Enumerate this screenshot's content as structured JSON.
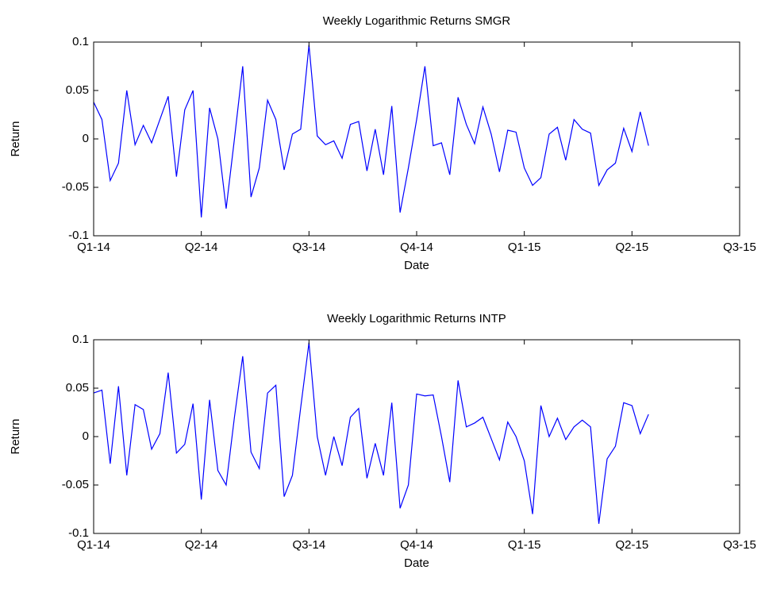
{
  "chart_data": [
    {
      "type": "line",
      "title": "Weekly Logarithmic Returns SMGR",
      "xlabel": "Date",
      "ylabel": "Return",
      "xlim": [
        0,
        78
      ],
      "xticks": [
        {
          "value": 0,
          "label": "Q1-14"
        },
        {
          "value": 13,
          "label": "Q2-14"
        },
        {
          "value": 26,
          "label": "Q3-14"
        },
        {
          "value": 39,
          "label": "Q4-14"
        },
        {
          "value": 52,
          "label": "Q1-15"
        },
        {
          "value": 65,
          "label": "Q2-15"
        },
        {
          "value": 78,
          "label": "Q3-15"
        }
      ],
      "ylim": [
        -0.1,
        0.1
      ],
      "yticks": [
        -0.1,
        -0.05,
        0,
        0.05,
        0.1
      ],
      "x": [
        0,
        1,
        2,
        3,
        4,
        5,
        6,
        7,
        8,
        9,
        10,
        11,
        12,
        13,
        14,
        15,
        16,
        17,
        18,
        19,
        20,
        21,
        22,
        23,
        24,
        25,
        26,
        27,
        28,
        29,
        30,
        31,
        32,
        33,
        34,
        35,
        36,
        37,
        38,
        39,
        40,
        41,
        42,
        43,
        44,
        45,
        46,
        47,
        48,
        49,
        50,
        51,
        52,
        53,
        54,
        55,
        56,
        57,
        58,
        59,
        60,
        61,
        62,
        63,
        64,
        65,
        66,
        67
      ],
      "series": [
        {
          "color": "#0000ff",
          "values": [
            0.038,
            0.02,
            -0.043,
            -0.025,
            0.05,
            -0.006,
            0.014,
            -0.004,
            0.02,
            0.044,
            -0.039,
            0.03,
            0.05,
            -0.081,
            0.032,
            0.0,
            -0.072,
            0.0,
            0.075,
            -0.06,
            -0.03,
            0.04,
            0.02,
            -0.032,
            0.005,
            0.01,
            0.097,
            0.003,
            -0.006,
            -0.002,
            -0.02,
            0.015,
            0.018,
            -0.033,
            0.01,
            -0.037,
            0.034,
            -0.076,
            -0.03,
            0.02,
            0.075,
            -0.007,
            -0.004,
            -0.037,
            0.043,
            0.015,
            -0.005,
            0.033,
            0.005,
            -0.034,
            0.009,
            0.007,
            -0.03,
            -0.048,
            -0.04,
            0.005,
            0.012,
            -0.022,
            0.02,
            0.01,
            0.006,
            -0.048,
            -0.032,
            -0.025,
            0.011,
            -0.013,
            0.028,
            -0.007
          ]
        }
      ]
    },
    {
      "type": "line",
      "title": "Weekly Logarithmic Returns INTP",
      "xlabel": "Date",
      "ylabel": "Return",
      "xlim": [
        0,
        78
      ],
      "xticks": [
        {
          "value": 0,
          "label": "Q1-14"
        },
        {
          "value": 13,
          "label": "Q2-14"
        },
        {
          "value": 26,
          "label": "Q3-14"
        },
        {
          "value": 39,
          "label": "Q4-14"
        },
        {
          "value": 52,
          "label": "Q1-15"
        },
        {
          "value": 65,
          "label": "Q2-15"
        },
        {
          "value": 78,
          "label": "Q3-15"
        }
      ],
      "ylim": [
        -0.1,
        0.1
      ],
      "yticks": [
        -0.1,
        -0.05,
        0,
        0.05,
        0.1
      ],
      "x": [
        0,
        1,
        2,
        3,
        4,
        5,
        6,
        7,
        8,
        9,
        10,
        11,
        12,
        13,
        14,
        15,
        16,
        17,
        18,
        19,
        20,
        21,
        22,
        23,
        24,
        25,
        26,
        27,
        28,
        29,
        30,
        31,
        32,
        33,
        34,
        35,
        36,
        37,
        38,
        39,
        40,
        41,
        42,
        43,
        44,
        45,
        46,
        47,
        48,
        49,
        50,
        51,
        52,
        53,
        54,
        55,
        56,
        57,
        58,
        59,
        60,
        61,
        62,
        63,
        64,
        65,
        66,
        67
      ],
      "series": [
        {
          "color": "#0000ff",
          "values": [
            0.045,
            0.048,
            -0.028,
            0.052,
            -0.04,
            0.033,
            0.028,
            -0.013,
            0.003,
            0.066,
            -0.017,
            -0.008,
            0.034,
            -0.065,
            0.038,
            -0.035,
            -0.05,
            0.02,
            0.083,
            -0.016,
            -0.033,
            0.045,
            0.053,
            -0.062,
            -0.04,
            0.03,
            0.097,
            0.0,
            -0.04,
            0.0,
            -0.03,
            0.02,
            0.029,
            -0.043,
            -0.007,
            -0.04,
            0.035,
            -0.074,
            -0.05,
            0.044,
            0.042,
            0.043,
            0.0,
            -0.047,
            0.058,
            0.01,
            0.014,
            0.02,
            -0.002,
            -0.024,
            0.015,
            0.0,
            -0.025,
            -0.08,
            0.032,
            0.0,
            0.019,
            -0.003,
            0.01,
            0.017,
            0.01,
            -0.09,
            -0.023,
            -0.01,
            0.035,
            0.032,
            0.003,
            0.023
          ]
        }
      ]
    }
  ]
}
